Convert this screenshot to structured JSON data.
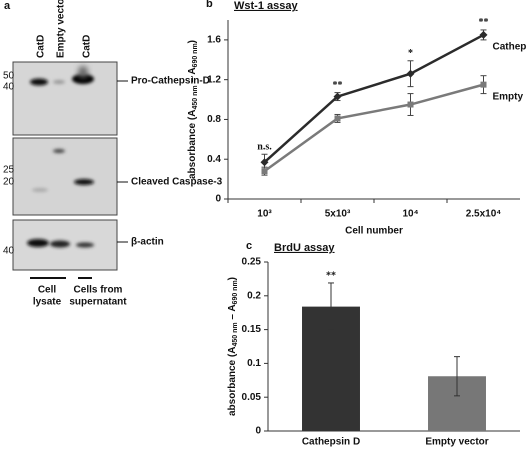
{
  "panel_a": {
    "label": "a",
    "lanes": [
      "CatD",
      "Empty vector",
      "CatD"
    ],
    "blots": [
      {
        "markers": [
          "50",
          "40"
        ],
        "band": "Pro-Cathepsin-D"
      },
      {
        "markers": [
          "25",
          "20"
        ],
        "band": "Cleaved Caspase-3"
      },
      {
        "markers": [
          "40"
        ],
        "band": "β-actin"
      }
    ],
    "groups": [
      [
        "Cell",
        "lysate"
      ],
      [
        "Cells from",
        "supernatant"
      ]
    ]
  },
  "chart_data": [
    {
      "type": "line",
      "panel": "b",
      "title": "Wst-1 assay",
      "ylabel": [
        "absorbance (A",
        "450 nm",
        " – A",
        "690 nm",
        ")"
      ],
      "xlabel": "Cell number",
      "categories": [
        "10³",
        "5x10³",
        "10⁴",
        "2.5x10⁴"
      ],
      "ylim": [
        0,
        1.8
      ],
      "yticks": [
        0,
        0.4,
        0.8,
        1.2,
        1.6
      ],
      "annotations": [
        "n.s.",
        "**",
        "*",
        "**"
      ],
      "series": [
        {
          "name": "Cathepsin D",
          "color": "#2b2b2b",
          "marker": "diamond",
          "values": [
            0.37,
            1.03,
            1.26,
            1.65
          ],
          "errors": [
            0.08,
            0.04,
            0.13,
            0.05
          ]
        },
        {
          "name": "Empty vector",
          "color": "#7a7a7a",
          "marker": "square",
          "values": [
            0.28,
            0.81,
            0.95,
            1.15
          ],
          "errors": [
            0.04,
            0.04,
            0.11,
            0.09
          ]
        }
      ]
    },
    {
      "type": "bar",
      "panel": "c",
      "title": "BrdU assay",
      "ylabel": [
        "absorbance (A",
        "450 nm",
        " – A",
        "690 nm",
        ")"
      ],
      "categories": [
        "Cathepsin D",
        "Empty vector"
      ],
      "values": [
        0.184,
        0.081
      ],
      "errors": [
        0.035,
        0.029
      ],
      "colors": [
        "#333333",
        "#777777"
      ],
      "annotations": [
        "**",
        null
      ],
      "ylim": [
        0,
        0.25
      ],
      "yticks": [
        0,
        0.05,
        0.1,
        0.15,
        0.2,
        0.25
      ]
    }
  ]
}
